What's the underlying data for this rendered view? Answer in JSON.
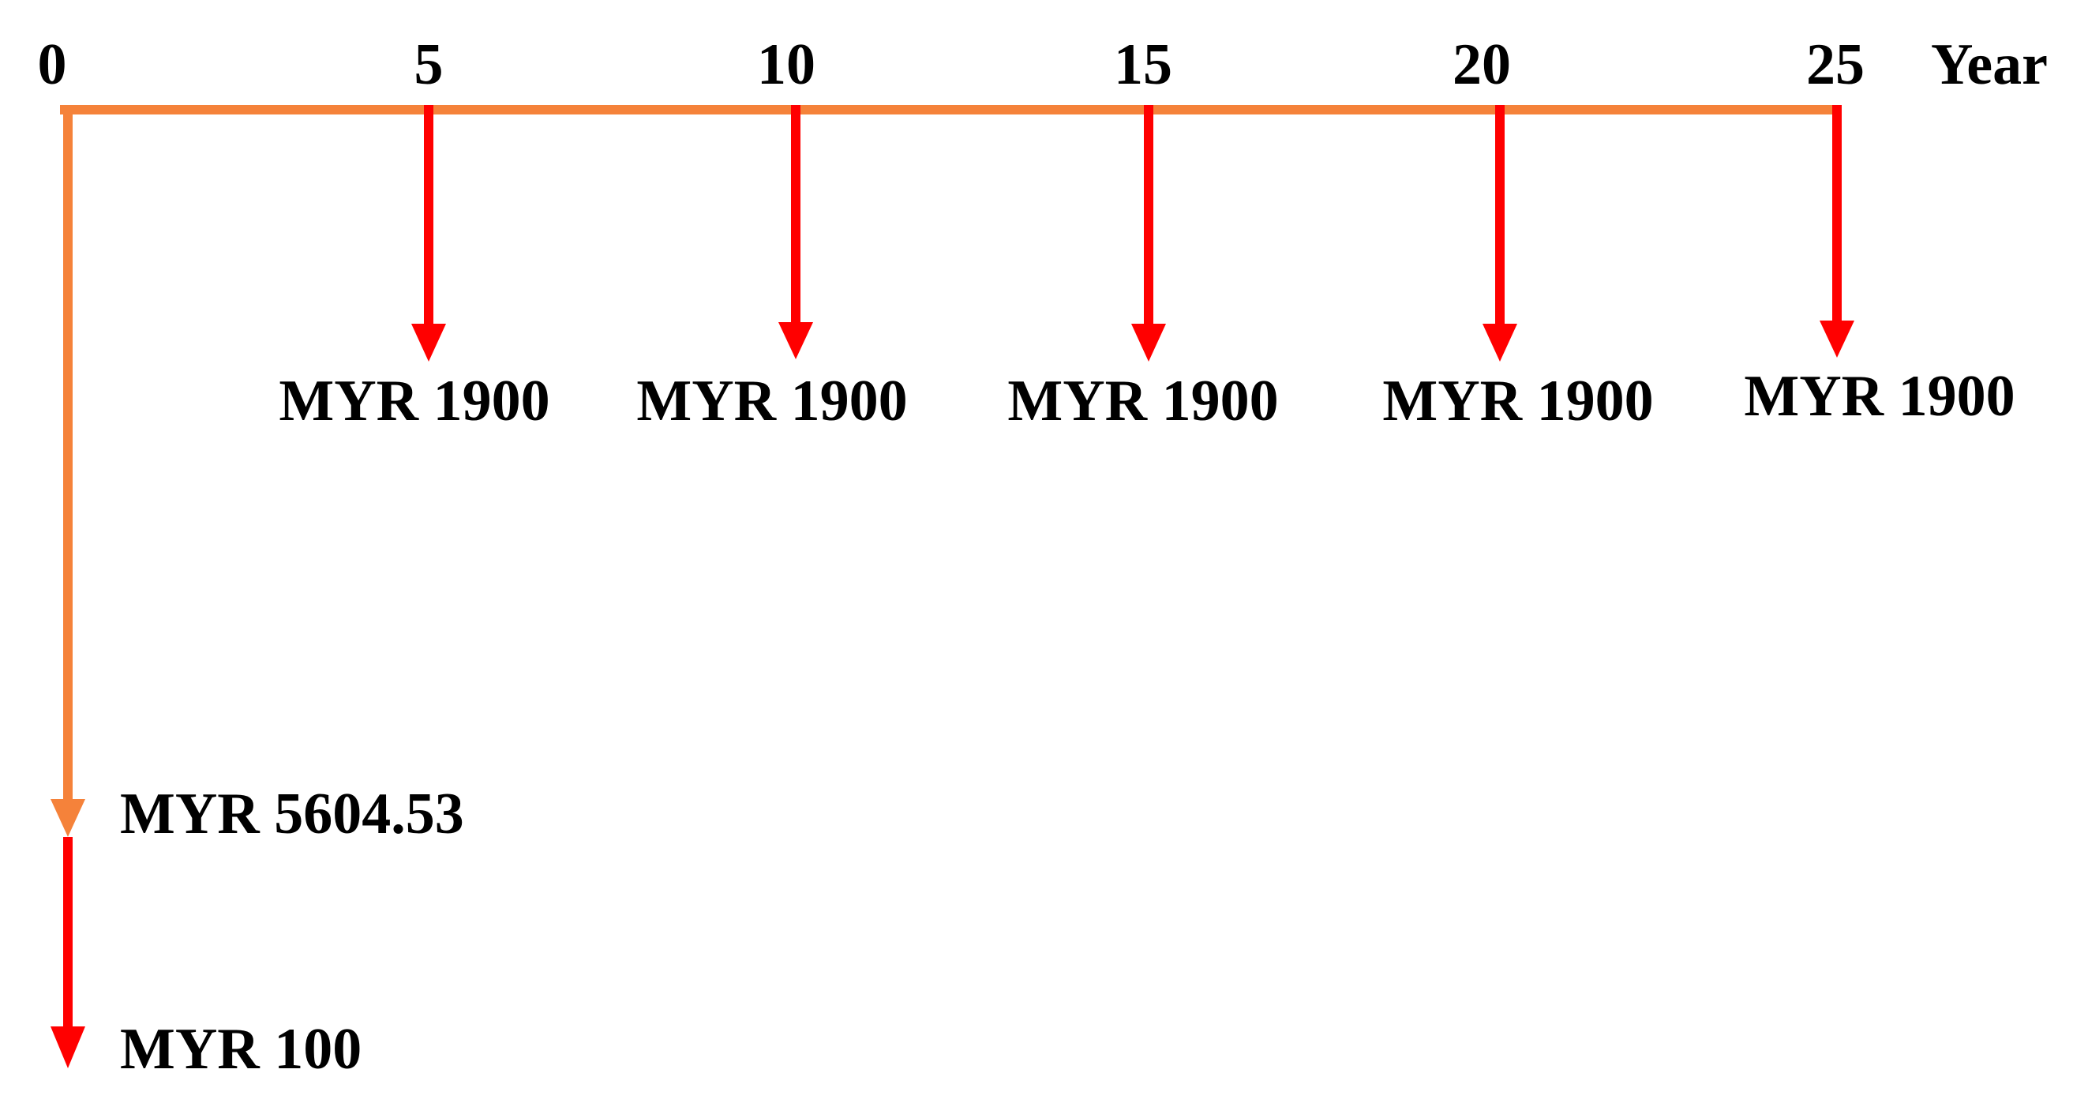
{
  "timeline": {
    "unit": "Year",
    "ticks": [
      "0",
      "5",
      "10",
      "15",
      "20",
      "25"
    ]
  },
  "cash_flows": {
    "periodic": [
      {
        "year": 5,
        "label": "MYR 1900"
      },
      {
        "year": 10,
        "label": "MYR 1900"
      },
      {
        "year": 15,
        "label": "MYR 1900"
      },
      {
        "year": 20,
        "label": "MYR 1900"
      },
      {
        "year": 25,
        "label": "MYR 1900"
      }
    ],
    "initial": [
      {
        "label": "MYR 5604.53"
      },
      {
        "label": "MYR 100"
      }
    ]
  },
  "colors": {
    "timeline": "#f5823a",
    "outflow_arrow": "#ff0000",
    "text": "#000000",
    "background": "#ffffff"
  }
}
